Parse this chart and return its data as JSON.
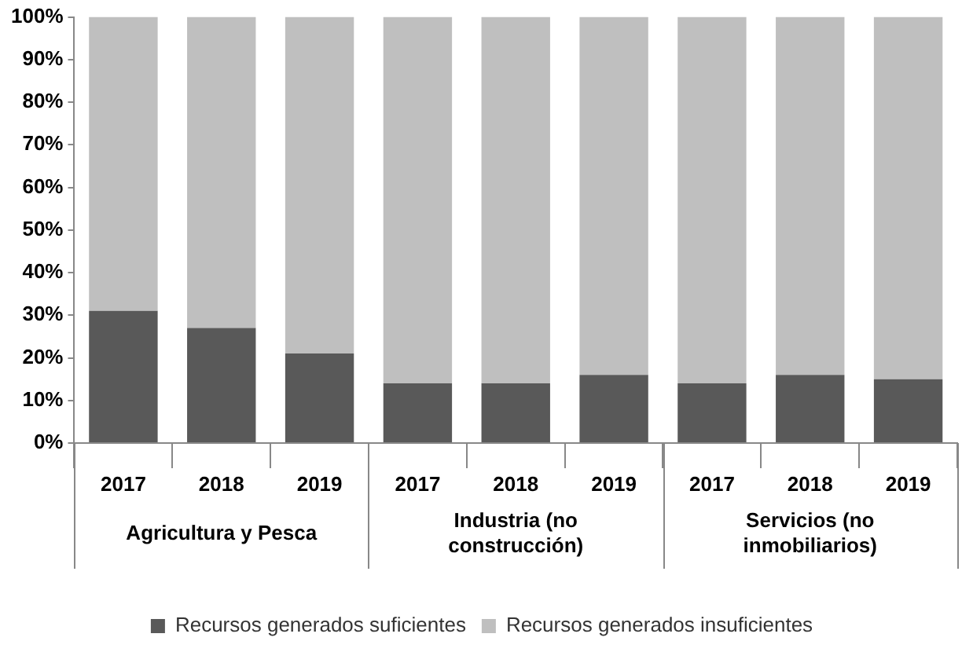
{
  "chart_data": {
    "type": "bar",
    "stacked": true,
    "categories": [
      "2017",
      "2018",
      "2019",
      "2017",
      "2018",
      "2019",
      "2017",
      "2018",
      "2019"
    ],
    "series": [
      {
        "name": "Recursos generados suficientes",
        "color": "#595959",
        "values": [
          31,
          27,
          21,
          14,
          14,
          16,
          14,
          16,
          15
        ]
      },
      {
        "name": "Recursos generados insuficientes",
        "color": "#bfbfbf",
        "values": [
          69,
          73,
          79,
          86,
          86,
          84,
          86,
          84,
          85
        ]
      }
    ],
    "ylim": [
      0,
      100
    ],
    "yticks": [
      {
        "value": 0,
        "label": "0%"
      },
      {
        "value": 10,
        "label": "10%"
      },
      {
        "value": 20,
        "label": "20%"
      },
      {
        "value": 30,
        "label": "30%"
      },
      {
        "value": 40,
        "label": "40%"
      },
      {
        "value": 50,
        "label": "50%"
      },
      {
        "value": 60,
        "label": "60%"
      },
      {
        "value": 70,
        "label": "70%"
      },
      {
        "value": 80,
        "label": "80%"
      },
      {
        "value": 90,
        "label": "90%"
      },
      {
        "value": 100,
        "label": "100%"
      }
    ],
    "annotations": [
      "Agricultura y Pesca",
      "Industria (no construcción)",
      "Servicios (no inmobiliarios)"
    ],
    "grid": false,
    "legend": "bottom"
  }
}
